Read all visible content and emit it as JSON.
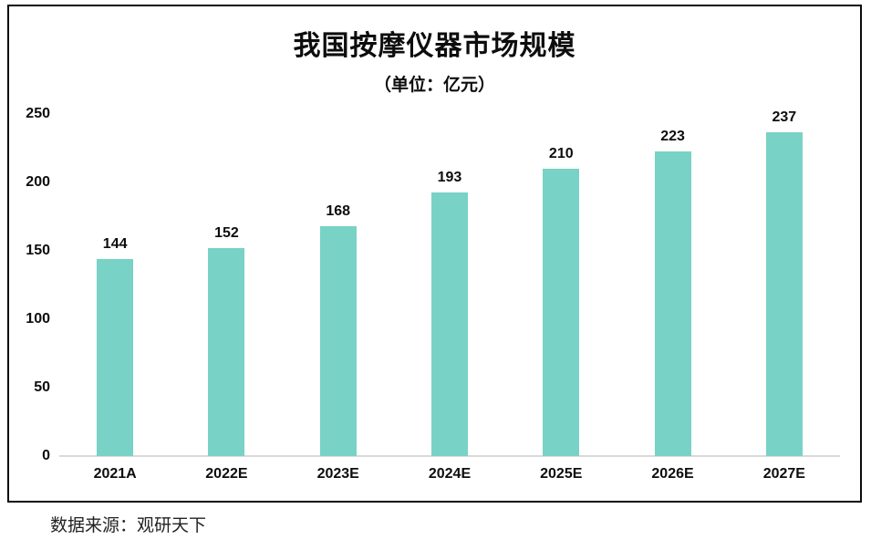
{
  "chart_data": {
    "type": "bar",
    "title": "我国按摩仪器市场规模",
    "subtitle": "（单位：亿元）",
    "categories": [
      "2021A",
      "2022E",
      "2023E",
      "2024E",
      "2025E",
      "2026E",
      "2027E"
    ],
    "values": [
      144,
      152,
      168,
      193,
      210,
      223,
      237
    ],
    "xlabel": "",
    "ylabel": "",
    "ylim": [
      0,
      250
    ],
    "yticks": [
      0,
      50,
      100,
      150,
      200,
      250
    ],
    "grid": false,
    "legend": "none",
    "bar_color": "#78d2c5",
    "axis_line_color": "#d9d9d9",
    "border_color": "#0b0b0b",
    "label_color": "#0d0d0d"
  },
  "source": {
    "text": "数据来源：观研天下"
  }
}
